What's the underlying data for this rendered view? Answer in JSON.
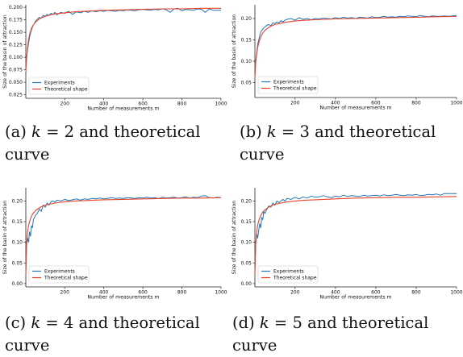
{
  "colors": {
    "experiments": "#1f77b4",
    "theoretical": "#e8432a"
  },
  "chart_data": [
    {
      "type": "line",
      "panel": "a",
      "xlabel": "Number of measurements m",
      "ylabel": "Size of the basin of attraction",
      "xlim": [
        1,
        1000
      ],
      "ylim": [
        0.018,
        0.205
      ],
      "xticks": [
        200,
        400,
        600,
        800,
        1000
      ],
      "yticks": [
        0.025,
        0.05,
        0.075,
        0.1,
        0.125,
        0.15,
        0.175,
        0.2
      ],
      "ytick_labels": [
        "0.025",
        "0.050",
        "0.075",
        "0.100",
        "0.125",
        "0.150",
        "0.175",
        "0.200"
      ],
      "legend": "lower-left",
      "series": [
        {
          "name": "Experiments",
          "x": [
            1,
            5,
            10,
            15,
            20,
            25,
            30,
            35,
            40,
            45,
            50,
            60,
            70,
            80,
            90,
            100,
            110,
            120,
            130,
            140,
            150,
            160,
            180,
            200,
            220,
            240,
            260,
            280,
            300,
            320,
            340,
            360,
            380,
            400,
            420,
            440,
            460,
            480,
            500,
            520,
            540,
            560,
            580,
            600,
            620,
            640,
            660,
            680,
            700,
            720,
            740,
            760,
            780,
            800,
            820,
            840,
            860,
            880,
            900,
            920,
            940,
            960,
            980,
            1000
          ],
          "y": [
            0.08,
            0.1,
            0.115,
            0.128,
            0.14,
            0.148,
            0.155,
            0.16,
            0.165,
            0.168,
            0.172,
            0.176,
            0.18,
            0.178,
            0.184,
            0.182,
            0.186,
            0.184,
            0.188,
            0.186,
            0.19,
            0.185,
            0.19,
            0.188,
            0.192,
            0.186,
            0.191,
            0.189,
            0.192,
            0.19,
            0.193,
            0.191,
            0.193,
            0.192,
            0.194,
            0.193,
            0.192,
            0.194,
            0.193,
            0.195,
            0.194,
            0.193,
            0.195,
            0.196,
            0.195,
            0.194,
            0.196,
            0.195,
            0.197,
            0.195,
            0.19,
            0.197,
            0.198,
            0.193,
            0.196,
            0.195,
            0.194,
            0.197,
            0.196,
            0.19,
            0.197,
            0.194,
            0.194,
            0.194
          ]
        },
        {
          "name": "Theoretical shape",
          "x": [
            1,
            5,
            10,
            15,
            20,
            30,
            40,
            50,
            60,
            80,
            100,
            120,
            150,
            200,
            250,
            300,
            400,
            500,
            600,
            700,
            800,
            900,
            1000
          ],
          "y": [
            0.07,
            0.099,
            0.121,
            0.135,
            0.145,
            0.158,
            0.165,
            0.17,
            0.174,
            0.179,
            0.182,
            0.184,
            0.187,
            0.189,
            0.191,
            0.192,
            0.194,
            0.195,
            0.196,
            0.197,
            0.197,
            0.198,
            0.198
          ]
        }
      ]
    },
    {
      "type": "line",
      "panel": "b",
      "xlabel": "Number of measurements m",
      "ylabel": "Size of the basin of attraction",
      "xlim": [
        1,
        1000
      ],
      "ylim": [
        0.015,
        0.232
      ],
      "xticks": [
        200,
        400,
        600,
        800,
        1000
      ],
      "yticks": [
        0.05,
        0.1,
        0.15,
        0.2
      ],
      "ytick_labels": [
        "0.05",
        "0.10",
        "0.15",
        "0.20"
      ],
      "legend": "lower-left",
      "series": [
        {
          "name": "Experiments",
          "x": [
            1,
            5,
            10,
            15,
            20,
            25,
            30,
            35,
            40,
            45,
            50,
            60,
            70,
            80,
            90,
            100,
            110,
            120,
            130,
            140,
            150,
            160,
            180,
            200,
            220,
            240,
            260,
            280,
            300,
            320,
            340,
            360,
            380,
            400,
            420,
            440,
            460,
            480,
            500,
            520,
            540,
            560,
            580,
            600,
            620,
            640,
            660,
            680,
            700,
            720,
            740,
            760,
            780,
            800,
            820,
            840,
            860,
            880,
            900,
            920,
            940,
            960,
            980,
            1000
          ],
          "y": [
            0.085,
            0.1,
            0.12,
            0.14,
            0.15,
            0.16,
            0.168,
            0.172,
            0.175,
            0.178,
            0.18,
            0.184,
            0.186,
            0.183,
            0.19,
            0.188,
            0.192,
            0.19,
            0.195,
            0.192,
            0.196,
            0.198,
            0.2,
            0.196,
            0.202,
            0.198,
            0.2,
            0.197,
            0.2,
            0.199,
            0.201,
            0.2,
            0.199,
            0.202,
            0.2,
            0.203,
            0.201,
            0.202,
            0.2,
            0.203,
            0.202,
            0.201,
            0.204,
            0.202,
            0.203,
            0.205,
            0.203,
            0.204,
            0.203,
            0.205,
            0.204,
            0.206,
            0.205,
            0.204,
            0.207,
            0.205,
            0.204,
            0.206,
            0.205,
            0.205,
            0.206,
            0.205,
            0.206,
            0.207
          ]
        },
        {
          "name": "Theoretical shape",
          "x": [
            1,
            5,
            10,
            15,
            20,
            30,
            40,
            50,
            60,
            80,
            100,
            120,
            150,
            200,
            250,
            300,
            400,
            500,
            600,
            700,
            800,
            900,
            1000
          ],
          "y": [
            0.06,
            0.096,
            0.118,
            0.132,
            0.143,
            0.157,
            0.166,
            0.172,
            0.176,
            0.182,
            0.186,
            0.188,
            0.191,
            0.194,
            0.196,
            0.197,
            0.199,
            0.2,
            0.201,
            0.202,
            0.203,
            0.204,
            0.205
          ]
        }
      ]
    },
    {
      "type": "line",
      "panel": "c",
      "xlabel": "Number of measurements m",
      "ylabel": "Size of the basin of attraction",
      "xlim": [
        1,
        1000
      ],
      "ylim": [
        -0.008,
        0.232
      ],
      "xticks": [
        200,
        400,
        600,
        800,
        1000
      ],
      "yticks": [
        0.0,
        0.05,
        0.1,
        0.15,
        0.2
      ],
      "ytick_labels": [
        "0.00",
        "0.05",
        "0.10",
        "0.15",
        "0.20"
      ],
      "legend": "lower-left",
      "series": [
        {
          "name": "Experiments",
          "x": [
            1,
            5,
            10,
            15,
            20,
            25,
            30,
            35,
            40,
            45,
            50,
            60,
            70,
            80,
            90,
            100,
            110,
            120,
            130,
            140,
            150,
            160,
            180,
            200,
            220,
            240,
            260,
            280,
            300,
            320,
            340,
            360,
            380,
            400,
            420,
            440,
            460,
            480,
            500,
            520,
            540,
            560,
            580,
            600,
            620,
            640,
            660,
            680,
            700,
            720,
            740,
            760,
            780,
            800,
            820,
            840,
            860,
            880,
            900,
            920,
            940,
            960,
            980,
            1000
          ],
          "y": [
            0.03,
            0.095,
            0.11,
            0.1,
            0.125,
            0.115,
            0.14,
            0.135,
            0.155,
            0.16,
            0.165,
            0.17,
            0.18,
            0.175,
            0.19,
            0.185,
            0.195,
            0.19,
            0.198,
            0.2,
            0.197,
            0.202,
            0.2,
            0.204,
            0.201,
            0.203,
            0.205,
            0.202,
            0.205,
            0.204,
            0.206,
            0.205,
            0.207,
            0.205,
            0.206,
            0.208,
            0.206,
            0.207,
            0.206,
            0.208,
            0.207,
            0.206,
            0.208,
            0.207,
            0.209,
            0.207,
            0.208,
            0.206,
            0.209,
            0.207,
            0.208,
            0.209,
            0.207,
            0.208,
            0.21,
            0.207,
            0.209,
            0.208,
            0.212,
            0.213,
            0.208,
            0.207,
            0.209,
            0.208
          ]
        },
        {
          "name": "Theoretical shape",
          "x": [
            1,
            5,
            10,
            15,
            20,
            30,
            40,
            50,
            60,
            80,
            100,
            120,
            150,
            200,
            250,
            300,
            400,
            500,
            600,
            700,
            800,
            900,
            1000
          ],
          "y": [
            0.02,
            0.098,
            0.125,
            0.14,
            0.15,
            0.163,
            0.171,
            0.176,
            0.18,
            0.186,
            0.19,
            0.192,
            0.195,
            0.198,
            0.2,
            0.201,
            0.203,
            0.204,
            0.205,
            0.206,
            0.207,
            0.207,
            0.208
          ]
        }
      ]
    },
    {
      "type": "line",
      "panel": "d",
      "xlabel": "Number of measurements m",
      "ylabel": "Size of the basin of attraction",
      "xlim": [
        1,
        1000
      ],
      "ylim": [
        -0.008,
        0.232
      ],
      "xticks": [
        200,
        400,
        600,
        800,
        1000
      ],
      "yticks": [
        0.0,
        0.05,
        0.1,
        0.15,
        0.2
      ],
      "ytick_labels": [
        "0.00",
        "0.05",
        "0.10",
        "0.15",
        "0.20"
      ],
      "legend": "lower-left",
      "series": [
        {
          "name": "Experiments",
          "x": [
            1,
            5,
            10,
            15,
            20,
            25,
            30,
            35,
            40,
            45,
            50,
            60,
            70,
            80,
            90,
            100,
            110,
            120,
            130,
            140,
            150,
            160,
            180,
            200,
            220,
            240,
            260,
            280,
            300,
            320,
            340,
            360,
            380,
            400,
            420,
            440,
            460,
            480,
            500,
            520,
            540,
            560,
            580,
            600,
            620,
            640,
            660,
            680,
            700,
            720,
            740,
            760,
            780,
            800,
            820,
            840,
            860,
            880,
            900,
            920,
            940,
            960,
            980,
            1000
          ],
          "y": [
            0.03,
            0.095,
            0.12,
            0.11,
            0.13,
            0.145,
            0.135,
            0.16,
            0.155,
            0.175,
            0.17,
            0.18,
            0.188,
            0.185,
            0.195,
            0.19,
            0.2,
            0.196,
            0.2,
            0.204,
            0.2,
            0.206,
            0.204,
            0.209,
            0.205,
            0.21,
            0.207,
            0.212,
            0.209,
            0.21,
            0.213,
            0.21,
            0.208,
            0.212,
            0.21,
            0.214,
            0.211,
            0.213,
            0.212,
            0.211,
            0.214,
            0.212,
            0.213,
            0.214,
            0.212,
            0.215,
            0.213,
            0.214,
            0.216,
            0.214,
            0.213,
            0.215,
            0.214,
            0.216,
            0.213,
            0.214,
            0.216,
            0.215,
            0.217,
            0.214,
            0.218,
            0.218,
            0.218,
            0.218
          ]
        },
        {
          "name": "Theoretical shape",
          "x": [
            1,
            5,
            10,
            15,
            20,
            30,
            40,
            50,
            60,
            80,
            100,
            120,
            150,
            200,
            250,
            300,
            400,
            500,
            600,
            700,
            800,
            900,
            1000
          ],
          "y": [
            0.02,
            0.098,
            0.126,
            0.142,
            0.152,
            0.165,
            0.173,
            0.178,
            0.182,
            0.188,
            0.192,
            0.194,
            0.197,
            0.2,
            0.202,
            0.203,
            0.205,
            0.207,
            0.208,
            0.209,
            0.209,
            0.21,
            0.211
          ]
        }
      ]
    }
  ],
  "captions": [
    {
      "label": "(a)",
      "math": "k",
      "eq": " = 2 and theoretical",
      "line2": "curve"
    },
    {
      "label": "(b)",
      "math": "k",
      "eq": " = 3 and theoretical",
      "line2": "curve"
    },
    {
      "label": "(c)",
      "math": "k",
      "eq": " = 4 and theoretical",
      "line2": "curve"
    },
    {
      "label": "(d)",
      "math": "k",
      "eq": " = 5 and theoretical",
      "line2": "curve"
    }
  ]
}
